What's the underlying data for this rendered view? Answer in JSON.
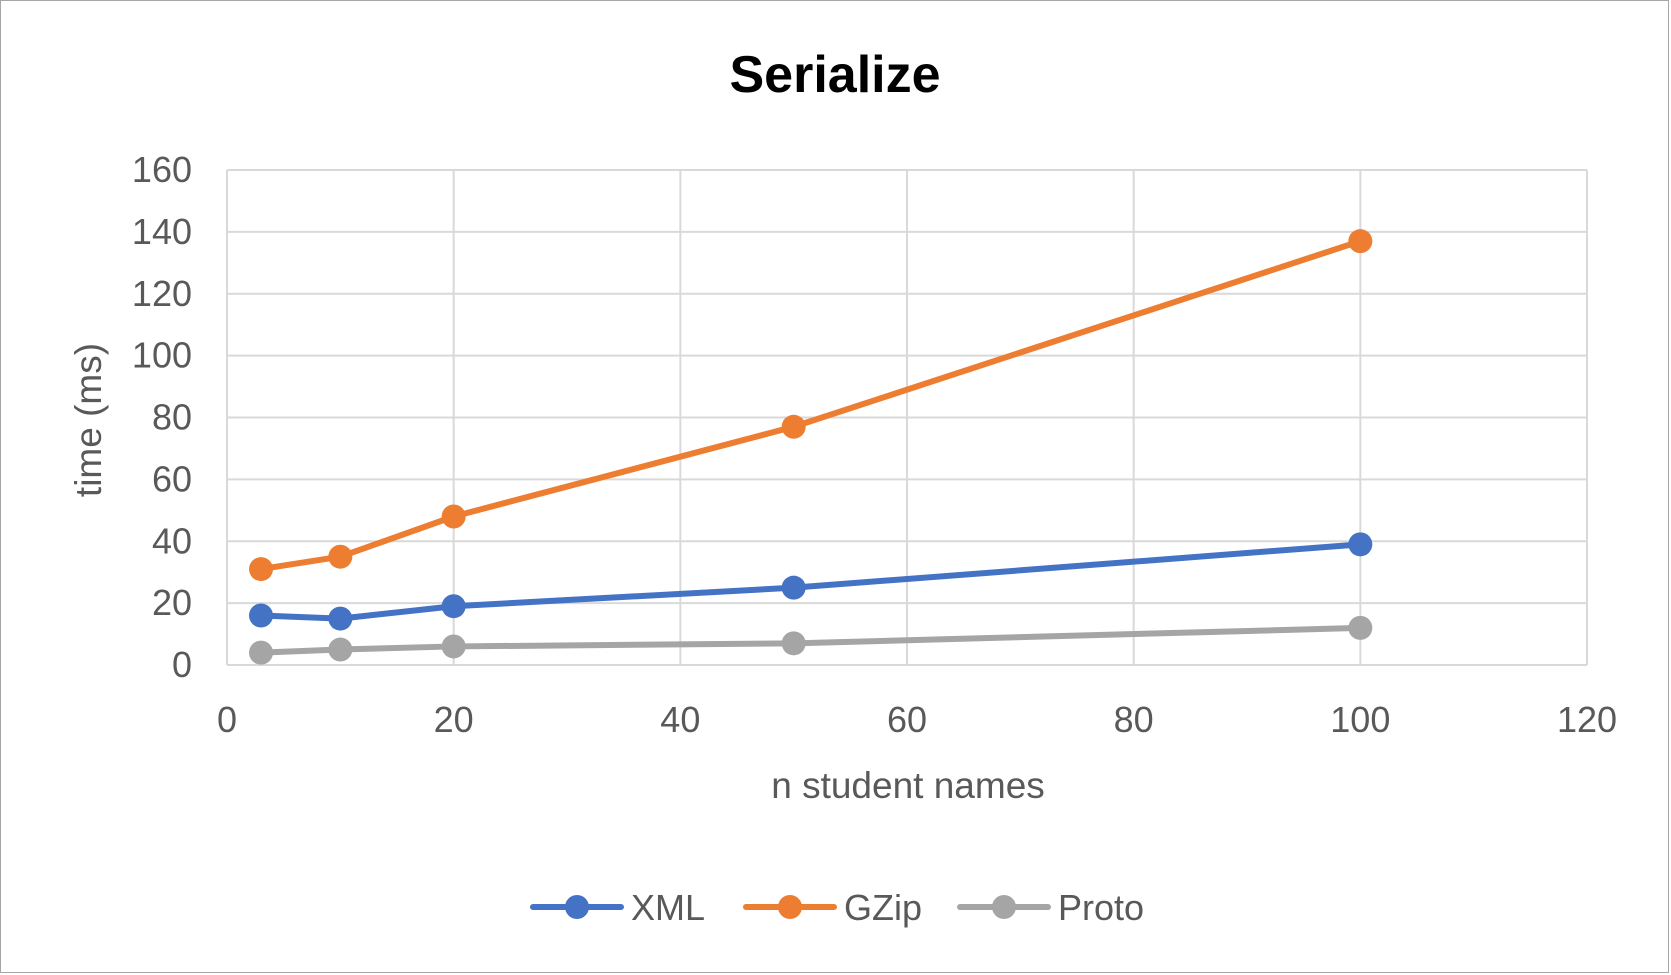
{
  "chart_data": {
    "type": "line",
    "title": "Serialize",
    "xlabel": "n student names",
    "ylabel": "time (ms)",
    "xlim": [
      0,
      120
    ],
    "ylim": [
      0,
      160
    ],
    "x_ticks": [
      0,
      20,
      40,
      60,
      80,
      100,
      120
    ],
    "y_ticks": [
      0,
      20,
      40,
      60,
      80,
      100,
      120,
      140,
      160
    ],
    "grid": true,
    "legend_position": "bottom",
    "series": [
      {
        "name": "XML",
        "color": "#4472c4",
        "points": [
          {
            "x": 3,
            "y": 16
          },
          {
            "x": 10,
            "y": 15
          },
          {
            "x": 20,
            "y": 19
          },
          {
            "x": 50,
            "y": 25
          },
          {
            "x": 100,
            "y": 39
          }
        ]
      },
      {
        "name": "GZip",
        "color": "#ed7d31",
        "points": [
          {
            "x": 3,
            "y": 31
          },
          {
            "x": 10,
            "y": 35
          },
          {
            "x": 20,
            "y": 48
          },
          {
            "x": 50,
            "y": 77
          },
          {
            "x": 100,
            "y": 137
          }
        ]
      },
      {
        "name": "Proto",
        "color": "#a5a5a5",
        "points": [
          {
            "x": 3,
            "y": 4
          },
          {
            "x": 10,
            "y": 5
          },
          {
            "x": 20,
            "y": 6
          },
          {
            "x": 50,
            "y": 7
          },
          {
            "x": 100,
            "y": 12
          }
        ]
      }
    ]
  }
}
